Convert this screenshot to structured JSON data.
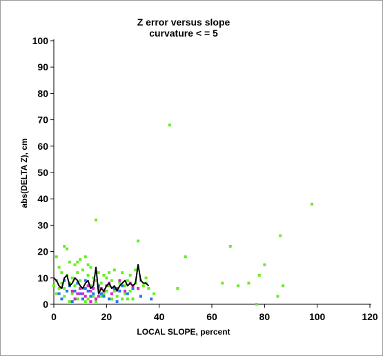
{
  "chart_data": {
    "type": "scatter",
    "title": [
      "Z error versus slope",
      "curvature < = 5"
    ],
    "xlabel": "LOCAL SLOPE, percent",
    "ylabel": "abs(DELTA Z), cm",
    "xlim": [
      0,
      120
    ],
    "ylim": [
      0,
      100
    ],
    "xticks": [
      0,
      20,
      40,
      60,
      80,
      100,
      120
    ],
    "yticks": [
      0,
      10,
      20,
      30,
      40,
      50,
      60,
      70,
      80,
      90,
      100
    ],
    "grid": false,
    "colors": {
      "green": "#66ee22",
      "blue": "#2277ee",
      "magenta": "#dd22cc",
      "line": "#000000"
    },
    "series": [
      {
        "color": "green",
        "marker": "square",
        "points": [
          [
            44,
            68
          ],
          [
            98,
            38
          ],
          [
            16,
            32
          ],
          [
            32,
            24
          ],
          [
            67,
            22
          ],
          [
            86,
            26
          ],
          [
            50,
            18
          ],
          [
            4,
            22
          ],
          [
            5,
            21
          ],
          [
            80,
            15
          ],
          [
            1,
            18
          ],
          [
            64,
            8
          ],
          [
            70,
            7
          ],
          [
            74,
            8
          ],
          [
            78,
            11
          ],
          [
            87,
            7
          ],
          [
            85,
            3
          ],
          [
            77,
            0
          ],
          [
            47,
            6
          ],
          [
            2,
            14
          ],
          [
            6,
            16
          ],
          [
            8,
            15
          ],
          [
            10,
            17
          ],
          [
            12,
            18
          ],
          [
            13,
            15
          ],
          [
            3,
            12
          ],
          [
            5,
            11
          ],
          [
            7,
            10
          ],
          [
            9,
            12
          ],
          [
            11,
            13
          ],
          [
            14,
            14
          ],
          [
            17,
            12
          ],
          [
            19,
            11
          ],
          [
            21,
            12
          ],
          [
            23,
            13
          ],
          [
            26,
            12
          ],
          [
            29,
            11
          ],
          [
            31,
            13
          ],
          [
            35,
            10
          ],
          [
            38,
            4
          ],
          [
            36,
            6
          ],
          [
            33,
            3
          ],
          [
            30,
            2
          ],
          [
            27,
            4
          ],
          [
            24,
            3
          ],
          [
            22,
            2
          ],
          [
            19,
            4
          ],
          [
            17,
            6
          ],
          [
            15,
            3
          ],
          [
            12,
            1
          ],
          [
            9,
            2
          ],
          [
            7,
            4
          ],
          [
            6,
            1
          ],
          [
            4,
            3
          ],
          [
            2,
            6
          ],
          [
            0,
            7
          ],
          [
            1,
            9
          ],
          [
            3,
            8
          ],
          [
            8,
            7
          ],
          [
            10,
            9
          ],
          [
            13,
            11
          ],
          [
            16,
            9
          ],
          [
            18,
            8
          ],
          [
            20,
            10
          ],
          [
            22,
            9
          ],
          [
            25,
            8
          ],
          [
            28,
            9
          ],
          [
            31,
            8
          ],
          [
            33,
            9
          ],
          [
            35,
            8
          ],
          [
            6,
            8
          ],
          [
            11,
            6
          ],
          [
            14,
            7
          ],
          [
            18,
            3
          ],
          [
            24,
            6
          ],
          [
            27,
            7
          ],
          [
            29,
            5
          ],
          [
            32,
            6
          ],
          [
            20,
            5
          ],
          [
            26,
            2
          ],
          [
            34,
            7
          ],
          [
            9,
            16
          ],
          [
            15,
            10
          ],
          [
            21,
            7
          ],
          [
            23,
            5
          ],
          [
            28,
            2
          ],
          [
            1,
            4
          ],
          [
            4,
            6
          ],
          [
            13,
            2
          ],
          [
            16,
            1
          ]
        ]
      },
      {
        "color": "blue",
        "marker": "square",
        "points": [
          [
            2,
            4
          ],
          [
            4,
            9
          ],
          [
            6,
            7
          ],
          [
            8,
            5
          ],
          [
            10,
            4
          ],
          [
            12,
            6
          ],
          [
            14,
            3
          ],
          [
            9,
            8
          ],
          [
            11,
            2
          ],
          [
            13,
            5
          ],
          [
            15,
            4
          ],
          [
            17,
            7
          ],
          [
            19,
            3
          ],
          [
            21,
            2
          ],
          [
            23,
            6
          ],
          [
            25,
            5
          ],
          [
            28,
            4
          ],
          [
            30,
            6
          ],
          [
            33,
            3
          ],
          [
            37,
            2
          ],
          [
            3,
            2
          ],
          [
            7,
            1
          ],
          [
            16,
            2
          ],
          [
            24,
            1
          ],
          [
            5,
            5
          ],
          [
            12,
            9
          ],
          [
            18,
            4
          ],
          [
            26,
            7
          ]
        ]
      },
      {
        "color": "magenta",
        "marker": "square",
        "points": [
          [
            8,
            2
          ],
          [
            10,
            6
          ],
          [
            12,
            3
          ],
          [
            14,
            5
          ],
          [
            16,
            2
          ],
          [
            18,
            6
          ],
          [
            20,
            7
          ],
          [
            22,
            4
          ],
          [
            11,
            4
          ],
          [
            13,
            7
          ],
          [
            15,
            6
          ],
          [
            17,
            3
          ],
          [
            19,
            5
          ],
          [
            21,
            8
          ],
          [
            9,
            4
          ],
          [
            24,
            6
          ],
          [
            27,
            5
          ],
          [
            30,
            7
          ],
          [
            14,
            1
          ],
          [
            7,
            5
          ],
          [
            25,
            9
          ],
          [
            29,
            8
          ],
          [
            32,
            6
          ]
        ]
      }
    ],
    "line": [
      [
        0,
        10
      ],
      [
        1,
        9
      ],
      [
        2,
        7
      ],
      [
        3,
        6
      ],
      [
        4,
        10
      ],
      [
        5,
        11
      ],
      [
        6,
        7
      ],
      [
        7,
        8
      ],
      [
        8,
        10
      ],
      [
        9,
        9
      ],
      [
        10,
        7
      ],
      [
        11,
        6
      ],
      [
        12,
        8
      ],
      [
        13,
        9
      ],
      [
        14,
        6
      ],
      [
        15,
        7
      ],
      [
        16,
        14
      ],
      [
        17,
        4
      ],
      [
        18,
        6
      ],
      [
        19,
        5
      ],
      [
        20,
        7
      ],
      [
        21,
        8
      ],
      [
        22,
        6
      ],
      [
        23,
        7
      ],
      [
        24,
        5
      ],
      [
        25,
        7
      ],
      [
        26,
        8
      ],
      [
        27,
        9
      ],
      [
        28,
        7
      ],
      [
        29,
        8
      ],
      [
        30,
        7
      ],
      [
        31,
        8
      ],
      [
        32,
        15
      ],
      [
        33,
        9
      ],
      [
        34,
        8
      ],
      [
        35,
        8
      ],
      [
        36,
        7
      ]
    ]
  }
}
